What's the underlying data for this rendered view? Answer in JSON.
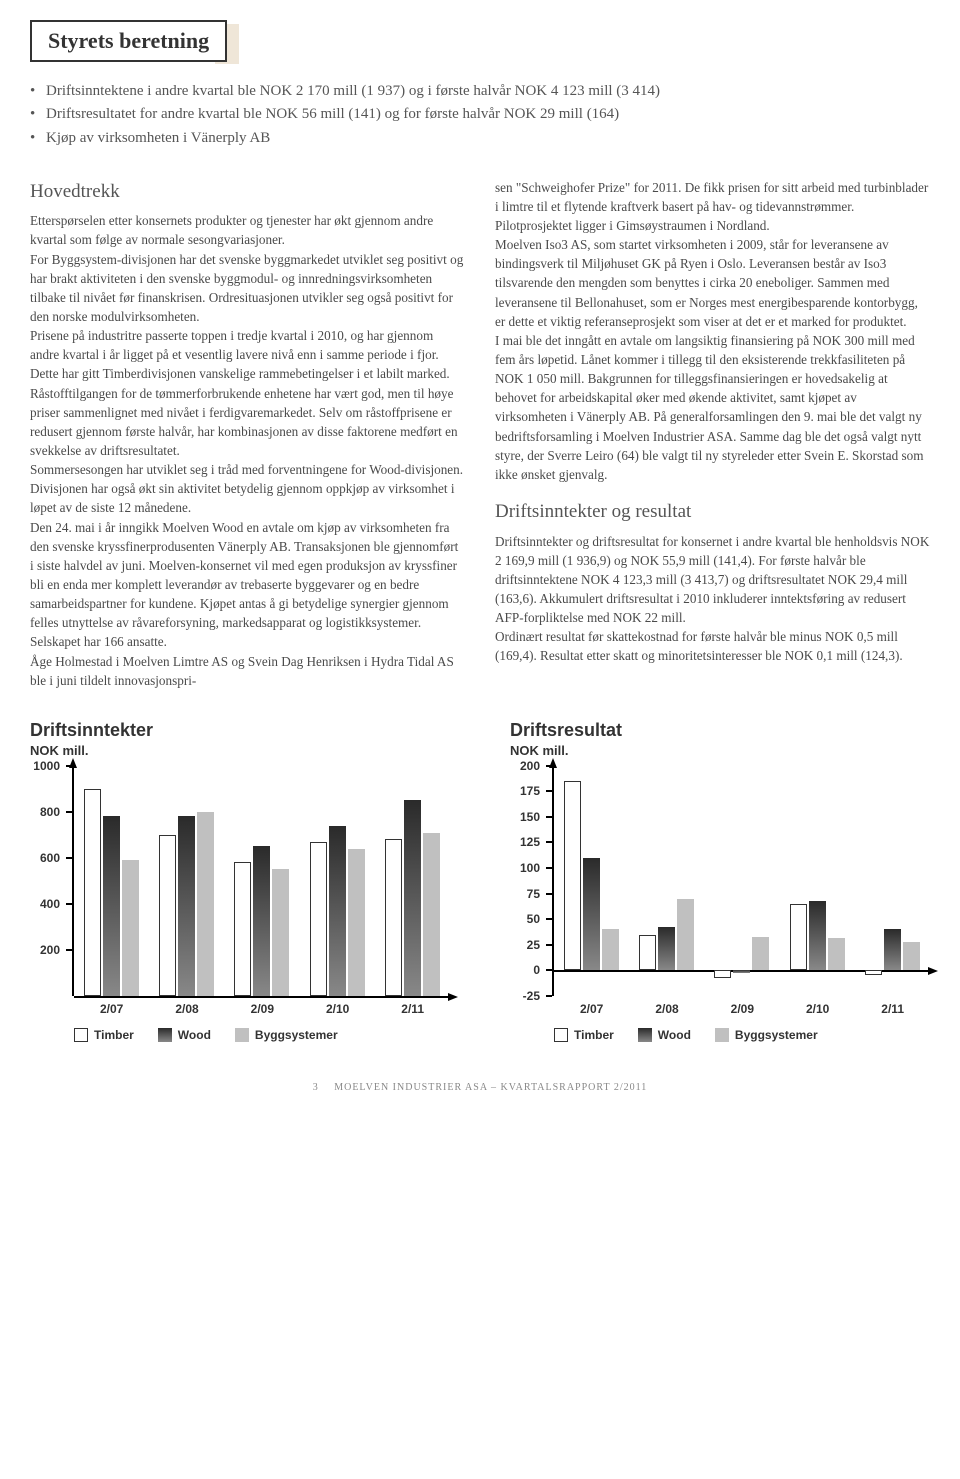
{
  "title": "Styrets beretning",
  "bullets": [
    "Driftsinntektene i andre kvartal ble NOK 2 170 mill (1 937)  og i første halvår NOK 4 123 mill (3 414)",
    "Driftsresultatet for andre kvartal ble NOK 56 mill (141) og for første halvår NOK 29 mill (164)",
    "Kjøp av virksomheten i Vänerply AB"
  ],
  "left": {
    "heading": "Hovedtrekk",
    "p1": "Etterspørselen etter konsernets produkter og tjenester har økt gjennom andre kvartal som følge av normale sesongvariasjoner.",
    "p2": "For Byggsystem-divisjonen har det svenske byggmarkedet utviklet seg positivt og har brakt aktiviteten i den svenske byggmodul- og innredningsvirksomheten tilbake til nivået før finanskrisen. Ordresituasjonen utvikler seg også positivt for den norske modulvirksomheten.",
    "p3": "Prisene på industritre passerte toppen i tredje kvartal i 2010, og har gjennom andre kvartal i år ligget på et vesentlig lavere nivå enn i samme periode i fjor. Dette har gitt Timberdivisjonen vanskelige rammebetingelser i et labilt marked. Råstofftilgangen for de tømmerforbrukende enhetene har vært god, men til høye priser sammenlignet med nivået i ferdigvaremarkedet. Selv om råstoffprisene er redusert gjennom første halvår, har kombinasjonen av disse faktorene medført en svekkelse av driftsresultatet.",
    "p4": "Sommersesongen har utviklet seg i tråd med forventningene for Wood-divisjonen. Divisjonen har også økt sin aktivitet betydelig gjennom oppkjøp av virksomhet i løpet av de siste 12 månedene.",
    "p5": "Den 24. mai i år inngikk Moelven Wood en avtale om kjøp av virksomheten fra den svenske kryssfinerprodusenten Vänerply AB. Transaksjonen ble gjennomført i siste halvdel av juni. Moelven-konsernet vil med egen produksjon av kryssfiner bli en enda mer komplett leverandør av trebaserte byggevarer og en bedre samarbeidspartner for kundene. Kjøpet antas å gi betydelige synergier gjennom felles utnyttelse av råvareforsyning, markedsapparat og logistikksystemer. Selskapet har 166 ansatte.",
    "p6": "Åge Holmestad i Moelven Limtre AS og Svein Dag Henriksen i Hydra Tidal AS ble i juni tildelt innovasjonspri-"
  },
  "right": {
    "p1": "sen \"Schweighofer Prize\"  for 2011. De fikk prisen for sitt arbeid med turbinblader i limtre til et flytende kraftverk basert på hav- og tidevannstrømmer. Pilotprosjektet ligger i Gimsøystraumen i Nordland.",
    "p2": "Moelven Iso3 AS, som startet virksomheten i 2009, står for leveransene av bindingsverk til Miljøhuset GK på Ryen i Oslo. Leveransen består av Iso3 tilsvarende den mengden som benyttes i cirka 20 eneboliger. Sammen med leveransene til Bellonahuset, som er Norges mest energibesparende kontorbygg, er dette et viktig referanseprosjekt som viser at det er et marked for produktet.",
    "p3": "I mai ble det inngått en avtale om langsiktig finansiering på NOK 300 mill med fem års løpetid. Lånet kommer i tillegg til den eksisterende trekkfasiliteten på NOK 1 050 mill. Bakgrunnen for tilleggsfinansieringen er hovedsakelig at behovet for arbeidskapital øker med økende aktivitet, samt kjøpet av virksomheten i Vänerply AB. På generalforsamlingen den 9. mai ble det valgt ny bedriftsforsamling i Moelven Industrier ASA. Samme dag ble det også valgt nytt styre, der Sverre Leiro (64) ble valgt til ny styreleder etter Svein E. Skorstad som ikke ønsket gjenvalg.",
    "heading2": "Driftsinntekter og resultat",
    "p4": "Driftsinntekter og driftsresultat for konsernet i andre kvartal ble henholdsvis NOK 2 169,9 mill (1 936,9) og NOK 55,9 mill (141,4). For første halvår ble driftsinntektene NOK 4 123,3 mill (3 413,7) og driftsresultatet NOK 29,4 mill (163,6). Akkumulert driftsresultat i 2010 inkluderer inntektsføring av redusert AFP-forpliktelse med NOK 22 mill.",
    "p5": "Ordinært resultat før skattekostnad for første halvår ble minus NOK 0,5 mill (169,4). Resultat etter skatt og minoritetsinteresser ble NOK 0,1 mill (124,3)."
  },
  "chart1": {
    "title": "Driftsinntekter",
    "unit": "NOK mill.",
    "ymin": 0,
    "ymax": 1000,
    "yticks": [
      200,
      400,
      600,
      800,
      1000
    ],
    "categories": [
      "2/07",
      "2/08",
      "2/09",
      "2/10",
      "2/11"
    ],
    "series": {
      "timber": [
        900,
        700,
        580,
        670,
        680
      ],
      "wood": [
        780,
        780,
        650,
        740,
        850
      ],
      "bygg": [
        590,
        800,
        550,
        640,
        710
      ]
    },
    "colors": {
      "timber": "#ffffff",
      "wood_grad_top": "#2a2a2a",
      "wood_grad_bot": "#888888",
      "bygg": "#c0c0c0"
    },
    "legend": [
      "Timber",
      "Wood",
      "Byggsystemer"
    ]
  },
  "chart2": {
    "title": "Driftsresultat",
    "unit": "NOK mill.",
    "ymin": -25,
    "ymax": 200,
    "yticks": [
      -25,
      0,
      25,
      50,
      75,
      100,
      125,
      150,
      175,
      200
    ],
    "categories": [
      "2/07",
      "2/08",
      "2/09",
      "2/10",
      "2/11"
    ],
    "series": {
      "timber": [
        185,
        35,
        -8,
        65,
        -5
      ],
      "wood": [
        110,
        42,
        -3,
        68,
        40
      ],
      "bygg": [
        40,
        70,
        33,
        32,
        28
      ]
    },
    "colors": {
      "timber": "#ffffff",
      "wood_grad_top": "#2a2a2a",
      "wood_grad_bot": "#888888",
      "bygg": "#c0c0c0"
    },
    "legend": [
      "Timber",
      "Wood",
      "Byggsystemer"
    ]
  },
  "footer": {
    "page": "3",
    "text": "MOELVEN INDUSTRIER ASA – KVARTALSRAPPORT 2/2011"
  }
}
